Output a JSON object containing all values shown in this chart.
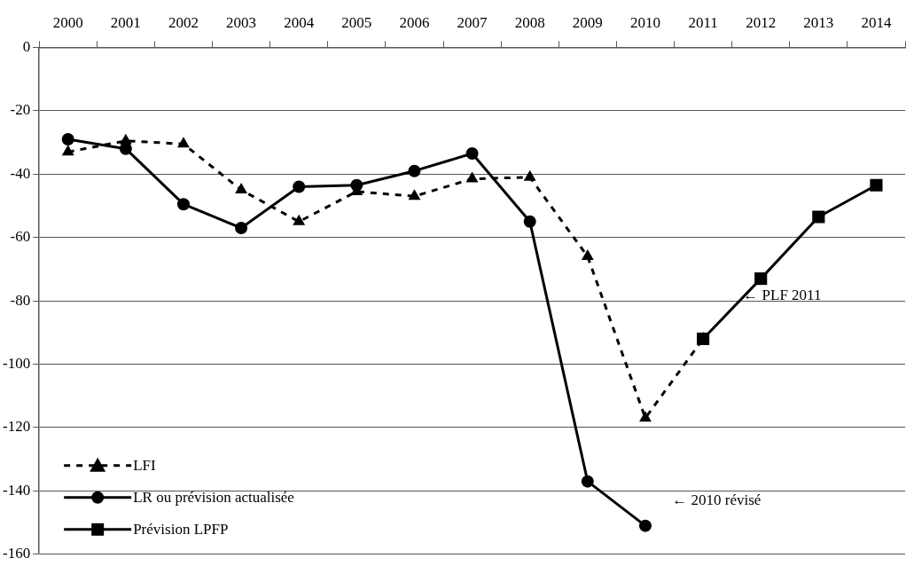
{
  "chart_data": {
    "type": "line",
    "categories": [
      "2000",
      "2001",
      "2002",
      "2003",
      "2004",
      "2005",
      "2006",
      "2007",
      "2008",
      "2009",
      "2010",
      "2011",
      "2012",
      "2013",
      "2014"
    ],
    "series": [
      {
        "name": "LFI",
        "color": "#000000",
        "marker": "triangle",
        "line_style": "dashed",
        "values": [
          -33,
          -29.5,
          -30.5,
          -45,
          -55,
          -45.5,
          -47,
          -41.5,
          -41,
          -66,
          -117,
          -92,
          null,
          null,
          null
        ]
      },
      {
        "name": "LR ou prévision actualisée",
        "color": "#000000",
        "marker": "circle",
        "line_style": "solid",
        "values": [
          -29,
          -32,
          -49.5,
          -57,
          -44,
          -43.5,
          -39,
          -33.5,
          -55,
          -137,
          -151,
          null,
          null,
          null,
          null
        ]
      },
      {
        "name": "Prévision LPFP",
        "color": "#000000",
        "marker": "square",
        "line_style": "solid",
        "values": [
          null,
          null,
          null,
          null,
          null,
          null,
          null,
          null,
          null,
          null,
          null,
          -92,
          -73,
          -53.5,
          -43.5
        ]
      }
    ],
    "ylim": [
      -160,
      0
    ],
    "yticks": [
      -160,
      -140,
      -120,
      -100,
      -80,
      -60,
      -40,
      -20,
      0
    ],
    "grid": "y",
    "legend": "bottom left",
    "annotations": [
      "← PLF 2011",
      "← 2010 révisé"
    ]
  }
}
